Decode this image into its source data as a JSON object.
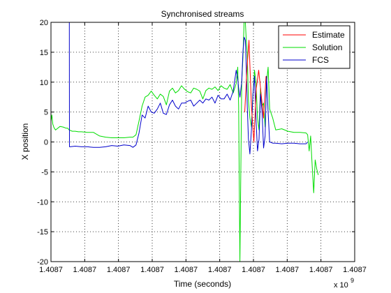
{
  "chart_data": {
    "type": "line",
    "title": "Synchronised streams",
    "xlabel": "Time (seconds)",
    "ylabel": "X position",
    "x_multiplier": "x 10",
    "x_multiplier_exp": "9",
    "xlim": [
      0,
      1
    ],
    "ylim": [
      -20,
      20
    ],
    "grid": true,
    "legend_position": "top-right",
    "x_tick_labels": [
      "1.4087",
      "1.4087",
      "1.4087",
      "1.4087",
      "1.4087",
      "1.4087",
      "1.4087",
      "1.4087",
      "1.4087",
      "1.4087"
    ],
    "y_ticks": [
      -20,
      -15,
      -10,
      -5,
      0,
      5,
      10,
      15,
      20
    ],
    "y_tick_labels": [
      "-20",
      "-15",
      "-10",
      "-5",
      "0",
      "5",
      "10",
      "15",
      "20"
    ],
    "series": [
      {
        "name": "Estimate",
        "color": "#ff0000",
        "x": [
          0.638,
          0.645,
          0.652,
          0.66,
          0.668,
          0.676,
          0.684,
          0.692,
          0.7,
          0.708
        ],
        "y": [
          5,
          12,
          17,
          6,
          0,
          9,
          12,
          8,
          4,
          11
        ]
      },
      {
        "name": "Solution",
        "color": "#00dd00",
        "x": [
          0.0,
          0.003,
          0.006,
          0.01,
          0.015,
          0.02,
          0.03,
          0.04,
          0.05,
          0.055,
          0.06,
          0.07,
          0.08,
          0.09,
          0.1,
          0.12,
          0.14,
          0.16,
          0.18,
          0.2,
          0.22,
          0.24,
          0.26,
          0.27,
          0.28,
          0.29,
          0.3,
          0.31,
          0.32,
          0.33,
          0.34,
          0.35,
          0.36,
          0.37,
          0.38,
          0.39,
          0.4,
          0.41,
          0.42,
          0.43,
          0.44,
          0.45,
          0.46,
          0.47,
          0.48,
          0.49,
          0.5,
          0.51,
          0.52,
          0.53,
          0.54,
          0.55,
          0.56,
          0.57,
          0.58,
          0.59,
          0.6,
          0.61,
          0.615,
          0.618,
          0.622,
          0.628,
          0.632,
          0.636,
          0.64,
          0.643,
          0.646,
          0.65,
          0.655,
          0.66,
          0.665,
          0.67,
          0.675,
          0.68,
          0.685,
          0.69,
          0.695,
          0.7,
          0.705,
          0.71,
          0.715,
          0.72,
          0.73,
          0.74,
          0.76,
          0.78,
          0.8,
          0.82,
          0.84,
          0.845,
          0.85,
          0.855,
          0.86,
          0.865,
          0.87,
          0.875,
          0.88
        ],
        "y": [
          3.5,
          4.5,
          3.0,
          2.4,
          2.0,
          2.2,
          2.6,
          2.5,
          2.3,
          2.3,
          2.0,
          1.8,
          1.8,
          1.7,
          1.7,
          1.6,
          1.6,
          1.0,
          0.8,
          0.7,
          0.7,
          0.7,
          0.8,
          0.8,
          1.2,
          3.5,
          6.0,
          7.5,
          7.8,
          8.5,
          7.8,
          7.2,
          8.0,
          7.6,
          6.2,
          8.5,
          9.0,
          8.2,
          8.6,
          9.4,
          8.8,
          8.4,
          8.2,
          9.0,
          8.8,
          8.5,
          7.2,
          8.6,
          9.0,
          8.8,
          9.2,
          8.6,
          9.4,
          9.0,
          8.8,
          9.6,
          8.2,
          9.8,
          12.5,
          6.0,
          -20,
          10.0,
          14.0,
          20.5,
          20,
          17.0,
          15.0,
          7.0,
          4.0,
          2.5,
          8.0,
          12.0,
          10.0,
          4.0,
          2.0,
          9.0,
          6.0,
          6.5,
          2.5,
          10.0,
          12.5,
          5.5,
          4.0,
          2.0,
          2.2,
          1.8,
          1.6,
          1.6,
          1.5,
          1.2,
          -1.5,
          1.0,
          -4.0,
          -8.5,
          -3.0,
          -4.5,
          -5.5
        ]
      },
      {
        "name": "FCS",
        "color": "#0000cc",
        "x": [
          0.06,
          0.0605,
          0.061,
          0.063,
          0.08,
          0.1,
          0.12,
          0.14,
          0.16,
          0.18,
          0.2,
          0.22,
          0.24,
          0.26,
          0.27,
          0.28,
          0.29,
          0.3,
          0.31,
          0.32,
          0.33,
          0.34,
          0.35,
          0.36,
          0.37,
          0.38,
          0.39,
          0.4,
          0.41,
          0.42,
          0.43,
          0.44,
          0.45,
          0.46,
          0.47,
          0.48,
          0.49,
          0.5,
          0.51,
          0.52,
          0.53,
          0.54,
          0.55,
          0.56,
          0.57,
          0.58,
          0.59,
          0.6,
          0.61,
          0.615,
          0.618,
          0.622,
          0.628,
          0.632,
          0.636,
          0.64,
          0.643,
          0.646,
          0.65,
          0.655,
          0.66,
          0.665,
          0.67,
          0.675,
          0.68,
          0.685,
          0.69,
          0.695,
          0.7,
          0.705,
          0.71,
          0.715,
          0.72,
          0.73,
          0.74,
          0.76,
          0.78,
          0.8,
          0.82,
          0.84,
          0.845
        ],
        "y": [
          20,
          20,
          -0.8,
          -0.8,
          -0.7,
          -0.8,
          -0.8,
          -0.9,
          -0.9,
          -0.8,
          -0.6,
          -0.7,
          -0.5,
          -0.6,
          -0.9,
          -0.5,
          1.5,
          4.5,
          4.0,
          6.0,
          5.0,
          4.8,
          5.5,
          6.5,
          4.8,
          4.6,
          6.2,
          7.0,
          6.0,
          5.5,
          6.5,
          6.5,
          6.8,
          7.0,
          6.0,
          6.5,
          7.0,
          6.5,
          7.2,
          7.0,
          7.5,
          6.5,
          7.8,
          7.2,
          7.2,
          8.0,
          7.0,
          8.5,
          12.0,
          10.5,
          9.0,
          7.5,
          10.0,
          15.0,
          17.5,
          17.0,
          12.5,
          6.5,
          0.5,
          -2.0,
          2.0,
          8.0,
          11.0,
          4.0,
          -1.5,
          0.5,
          8.0,
          5.0,
          -1.0,
          1.0,
          11.0,
          5.0,
          0.0,
          -0.2,
          -0.2,
          -0.3,
          -0.2,
          -0.2,
          -0.3,
          -0.3,
          0.0
        ]
      }
    ]
  }
}
